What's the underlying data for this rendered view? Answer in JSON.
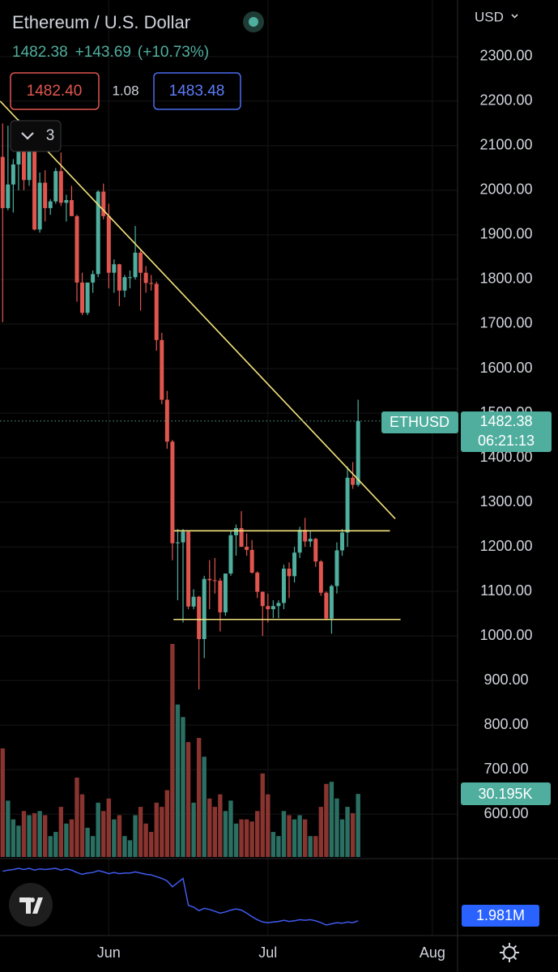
{
  "chart_data": {
    "type": "candlestick",
    "title": "Ethereum / U.S. Dollar",
    "last": 1482.38,
    "change": "+143.69",
    "change_pct": "(+10.73%)",
    "bid": 1482.4,
    "bid_label": "1482.40",
    "spread": 1.08,
    "ask": 1483.48,
    "indicators_count": 3,
    "currency": "USD",
    "symbol": "ETHUSD",
    "price_label": 1482.38,
    "countdown": "06:21:13",
    "up_color": "#4fae9e",
    "down_color": "#e0564f",
    "x": [
      0,
      1,
      2,
      3,
      4,
      5,
      6,
      7,
      8,
      9,
      10,
      11,
      12,
      13,
      14,
      15,
      16,
      17,
      18,
      19,
      20,
      21,
      22,
      23,
      24,
      25,
      26,
      27,
      28,
      29,
      30,
      31,
      32,
      33,
      34,
      35,
      36,
      37,
      38,
      39,
      40,
      41,
      42,
      43,
      44,
      45,
      46,
      47,
      48,
      49,
      50,
      51,
      52,
      53,
      54,
      55,
      56,
      57,
      58,
      59,
      60,
      61,
      62,
      63,
      64,
      65,
      66,
      67
    ],
    "open": [
      2075,
      1960,
      2013,
      2058,
      2145,
      2023,
      2092,
      1912,
      2017,
      1960,
      1975,
      2043,
      1972,
      1978,
      1942,
      1793,
      1725,
      1793,
      1812,
      1997,
      1942,
      1815,
      1834,
      1775,
      1805,
      1805,
      1860,
      1815,
      1792,
      1790,
      1664,
      1530,
      1436,
      1208,
      1210,
      1234,
      1066,
      1088,
      993,
      1128,
      1125,
      1124,
      1053,
      1140,
      1226,
      1242,
      1200,
      1193,
      1142,
      1099,
      1067,
      1060,
      1067,
      1074,
      1151,
      1134,
      1187,
      1238,
      1212,
      1218,
      1167,
      1097,
      1039,
      1112,
      1192,
      1232,
      1355,
      1339
    ],
    "high": [
      2150,
      2145,
      2070,
      2160,
      2150,
      2110,
      2095,
      2040,
      2045,
      1980,
      2050,
      2085,
      1990,
      2010,
      1945,
      1815,
      1780,
      1820,
      2000,
      2015,
      1970,
      1845,
      1835,
      1810,
      1820,
      1920,
      1865,
      1830,
      1810,
      1795,
      1680,
      1550,
      1440,
      1240,
      1240,
      1236,
      1105,
      1090,
      1135,
      1170,
      1175,
      1130,
      1140,
      1235,
      1250,
      1280,
      1230,
      1215,
      1145,
      1100,
      1095,
      1080,
      1080,
      1160,
      1165,
      1200,
      1245,
      1265,
      1235,
      1220,
      1170,
      1100,
      1115,
      1210,
      1240,
      1380,
      1390,
      1530
    ],
    "low": [
      1704,
      1955,
      1950,
      2000,
      2000,
      2010,
      1910,
      1905,
      1930,
      1945,
      1970,
      1965,
      1930,
      1950,
      1750,
      1720,
      1720,
      1770,
      1805,
      1935,
      1780,
      1770,
      1740,
      1760,
      1780,
      1800,
      1730,
      1770,
      1775,
      1640,
      1520,
      1420,
      1170,
      1080,
      1030,
      1060,
      1060,
      880,
      950,
      1060,
      1095,
      1010,
      1045,
      1135,
      1180,
      1200,
      1180,
      1140,
      1085,
      1000,
      1030,
      1040,
      1040,
      1060,
      1085,
      1120,
      1175,
      1200,
      1200,
      1155,
      1090,
      1035,
      1005,
      1095,
      1180,
      1200,
      1330,
      1335
    ],
    "close": [
      1960,
      2013,
      2058,
      2145,
      2023,
      2092,
      1912,
      2017,
      1960,
      1975,
      2043,
      1972,
      1978,
      1942,
      1793,
      1725,
      1793,
      1812,
      1997,
      1942,
      1815,
      1834,
      1775,
      1805,
      1805,
      1860,
      1815,
      1792,
      1790,
      1664,
      1530,
      1436,
      1208,
      1210,
      1234,
      1066,
      1088,
      993,
      1128,
      1125,
      1124,
      1053,
      1140,
      1226,
      1242,
      1200,
      1193,
      1142,
      1099,
      1067,
      1060,
      1067,
      1074,
      1151,
      1134,
      1187,
      1238,
      1212,
      1218,
      1167,
      1097,
      1039,
      1112,
      1192,
      1232,
      1355,
      1339,
      1482.38
    ],
    "xlim": [
      -0.5,
      85.75
    ],
    "xticks": [
      {
        "value": 20,
        "label": "Jun"
      },
      {
        "value": 50,
        "label": "Jul"
      },
      {
        "value": 81,
        "label": "Aug"
      }
    ],
    "ylim": [
      504,
      2427
    ],
    "yticks": [
      {
        "value": 600,
        "label": "600.00"
      },
      {
        "value": 700,
        "label": "700.00"
      },
      {
        "value": 800,
        "label": "800.00"
      },
      {
        "value": 900,
        "label": "900.00"
      },
      {
        "value": 1000,
        "label": "1000.00"
      },
      {
        "value": 1100,
        "label": "1100.00"
      },
      {
        "value": 1200,
        "label": "1200.00"
      },
      {
        "value": 1300,
        "label": "1300.00"
      },
      {
        "value": 1400,
        "label": "1400.00"
      },
      {
        "value": 1500,
        "label": "1500.00"
      },
      {
        "value": 1600,
        "label": "1600.00"
      },
      {
        "value": 1700,
        "label": "1700.00"
      },
      {
        "value": 1800,
        "label": "1800.00"
      },
      {
        "value": 1900,
        "label": "1900.00"
      },
      {
        "value": 2000,
        "label": "2000.00"
      },
      {
        "value": 2100,
        "label": "2100.00"
      },
      {
        "value": 2200,
        "label": "2200.00"
      },
      {
        "value": 2300,
        "label": "2300.00"
      }
    ],
    "grid": true,
    "volume": {
      "up_color": "#2b6f63",
      "down_color": "#8a3430",
      "values": [
        52,
        27,
        18,
        15,
        22,
        20,
        21,
        22,
        20,
        10,
        12,
        24,
        16,
        18,
        38,
        30,
        14,
        10,
        26,
        22,
        28,
        18,
        20,
        10,
        8,
        20,
        24,
        16,
        12,
        26,
        24,
        32,
        102,
        73,
        67,
        55,
        26,
        57,
        48,
        28,
        24,
        30,
        22,
        27,
        16,
        18,
        18,
        17,
        22,
        40,
        30,
        12,
        10,
        22,
        20,
        18,
        20,
        18,
        10,
        10,
        24,
        35,
        36,
        28,
        18,
        24,
        21,
        30.195
      ],
      "last_label": "30.195K"
    },
    "obv": {
      "color": "#3f5bf0",
      "values": [
        2.81,
        2.83,
        2.84,
        2.86,
        2.84,
        2.86,
        2.83,
        2.85,
        2.84,
        2.85,
        2.86,
        2.83,
        2.85,
        2.83,
        2.79,
        2.76,
        2.78,
        2.79,
        2.82,
        2.8,
        2.77,
        2.79,
        2.77,
        2.78,
        2.78,
        2.8,
        2.78,
        2.76,
        2.75,
        2.72,
        2.69,
        2.65,
        2.55,
        2.62,
        2.69,
        2.24,
        2.21,
        2.15,
        2.19,
        2.17,
        2.14,
        2.11,
        2.13,
        2.16,
        2.18,
        2.16,
        2.11,
        2.05,
        2.0,
        1.96,
        1.95,
        1.96,
        1.97,
        1.99,
        1.97,
        1.98,
        2.0,
        1.99,
        2.0,
        1.98,
        1.95,
        1.91,
        1.93,
        1.95,
        1.94,
        1.96,
        1.95,
        1.981
      ],
      "last_label": "1.981M"
    },
    "trend_lines": [
      {
        "color": "#f3e37c",
        "points": [
          [
            -0.46,
            2200
          ],
          [
            74,
            1263
          ]
        ]
      },
      {
        "color": "#f3e37c",
        "points": [
          [
            32.3,
            1236
          ],
          [
            73,
            1236
          ]
        ]
      },
      {
        "color": "#f3e37c",
        "points": [
          [
            32.2,
            1037
          ],
          [
            75,
            1037
          ]
        ]
      }
    ]
  }
}
